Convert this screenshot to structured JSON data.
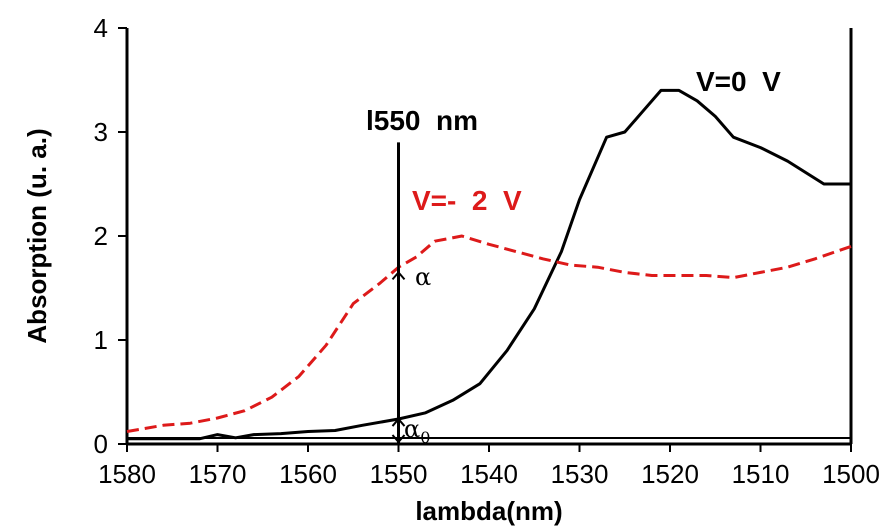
{
  "chart_data": {
    "type": "line",
    "title": "",
    "xlabel": "lambda(nm)",
    "ylabel": "Absorption (u. a.)",
    "xlim": [
      1580,
      1500
    ],
    "ylim": [
      0,
      4
    ],
    "x_ticks": [
      1580,
      1570,
      1560,
      1550,
      1540,
      1530,
      1520,
      1510,
      1500
    ],
    "y_ticks": [
      0,
      1,
      2,
      3,
      4
    ],
    "grid": false,
    "series": [
      {
        "name": "V=0  V",
        "color": "#000000",
        "style": "solid",
        "x": [
          1580,
          1572,
          1570,
          1568,
          1566,
          1563,
          1560,
          1557,
          1554,
          1550,
          1547,
          1544,
          1541,
          1538,
          1535,
          1532,
          1530,
          1527,
          1525,
          1523,
          1521,
          1519,
          1517,
          1515,
          1513,
          1510,
          1507,
          1503,
          1500
        ],
        "y": [
          0.05,
          0.05,
          0.09,
          0.06,
          0.09,
          0.1,
          0.12,
          0.13,
          0.18,
          0.24,
          0.3,
          0.42,
          0.58,
          0.9,
          1.3,
          1.85,
          2.35,
          2.95,
          3.0,
          3.2,
          3.4,
          3.4,
          3.3,
          3.15,
          2.95,
          2.85,
          2.72,
          2.5,
          2.5
        ]
      },
      {
        "name": "V=-  2  V",
        "color": "#dd1a1a",
        "style": "dashed",
        "x": [
          1580,
          1576,
          1573,
          1570,
          1567,
          1564,
          1561,
          1558,
          1555,
          1552,
          1550,
          1548,
          1546,
          1543,
          1540,
          1537,
          1534,
          1531,
          1528,
          1525,
          1522,
          1519,
          1516,
          1513,
          1510,
          1507,
          1504,
          1500
        ],
        "y": [
          0.12,
          0.18,
          0.2,
          0.25,
          0.32,
          0.45,
          0.65,
          0.95,
          1.35,
          1.55,
          1.7,
          1.8,
          1.95,
          2.0,
          1.92,
          1.85,
          1.78,
          1.72,
          1.7,
          1.65,
          1.62,
          1.62,
          1.62,
          1.6,
          1.65,
          1.7,
          1.78,
          1.9
        ]
      }
    ],
    "vertical_marker": {
      "x": 1550,
      "label": "l550  nm",
      "y_top": 2.9
    },
    "annotations": {
      "alpha": "α",
      "alpha0_base": "α",
      "alpha0_sub": "0",
      "alpha_y": 1.65,
      "alpha0_y": 0.24
    }
  }
}
